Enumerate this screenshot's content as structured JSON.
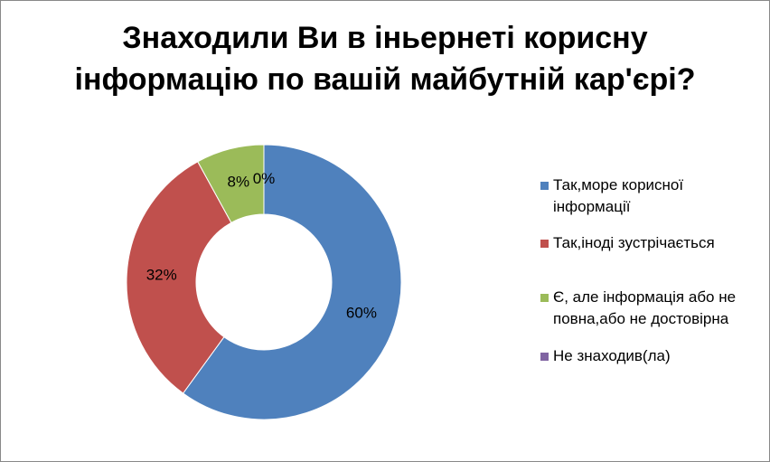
{
  "chart_data": {
    "type": "donut",
    "title": "Знаходили Ви в іньернеті корисну інформацію по вашій майбутній кар'єрі?",
    "categories": [
      "Так,море корисної інформації",
      "Так,іноді зустрічається",
      "Є, але інформація або не повна,або не достовірна",
      "Не знаходив(ла)"
    ],
    "values": [
      60,
      32,
      8,
      0
    ],
    "value_labels": [
      "60%",
      "32%",
      "8%",
      "0%"
    ],
    "colors": [
      "#4f81bd",
      "#c0504d",
      "#9bbb59",
      "#8064a2"
    ],
    "legend": "right"
  }
}
